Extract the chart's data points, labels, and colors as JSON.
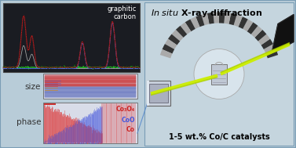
{
  "bg_color": "#b8ccd8",
  "overall_border": "#7a9db5",
  "title_text": "In situ X-ray diffraction",
  "bottom_text": "1-5 wt.% Co/C catalysts",
  "graphitic_carbon_label": "graphitic\ncarbon",
  "size_label": "size",
  "phase_label": "phase",
  "legend_co3o4": "Co₃O₄",
  "legend_coo": "CoO",
  "legend_co": "Co",
  "xrd_panel_bg": "#1a1c22",
  "red_color": "#cc2222",
  "blue_color": "#4466dd",
  "green_color": "#22bb22",
  "gray_color": "#999999",
  "right_panel_bg": "#c5d5de",
  "size_panel_bg": "#dde0e8",
  "phase_panel_bg": "#dde0e8",
  "left_label_color": "#333333",
  "arc_dark": "#333333",
  "arc_light": "#aaaaaa",
  "beam_color": "#ccee00",
  "stage_color": "#b8c0cc",
  "disk_color": "#d8e4ec"
}
